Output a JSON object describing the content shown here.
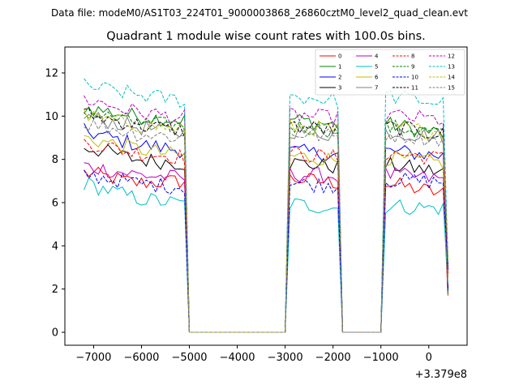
{
  "chart_data": {
    "type": "line",
    "suptitle": "Data file: modeM0/AS1T03_224T01_9000003868_26860cztM0_level2_quad_clean.evt",
    "title": "Quadrant 1 module wise count rates with 100.0s bins.",
    "xlabel": "",
    "ylabel": "",
    "x_offset_label": "+3.379e8",
    "xlim": [
      -7600,
      800
    ],
    "ylim": [
      -0.6,
      13.2
    ],
    "xticks": [
      -7000,
      -6000,
      -5000,
      -4000,
      -3000,
      -2000,
      -1000,
      0
    ],
    "xtick_labels": [
      "−7000",
      "−6000",
      "−5000",
      "−4000",
      "−3000",
      "−2000",
      "−1000",
      "0"
    ],
    "yticks": [
      0,
      2,
      4,
      6,
      8,
      10,
      12
    ],
    "ytick_labels": [
      "0",
      "2",
      "4",
      "6",
      "8",
      "10",
      "12"
    ],
    "grid": false,
    "legend_position": "top-right",
    "segments": [
      {
        "start": -7200,
        "end": -5100
      },
      {
        "start": -2900,
        "end": -1900
      },
      {
        "start": -900,
        "end": 400
      }
    ],
    "gap_x": [
      -5000,
      -3000,
      -1800,
      -1000
    ],
    "series": [
      {
        "name": "0",
        "color": "#ff0000",
        "dashed": false,
        "levels": [
          7.4,
          6.9,
          7.0,
          7.1,
          6.7,
          6.5,
          6.2,
          5.8
        ]
      },
      {
        "name": "1",
        "color": "#008000",
        "dashed": false,
        "levels": [
          10.4,
          10.0,
          9.8,
          9.6,
          9.3,
          9.0,
          8.7,
          8.3
        ]
      },
      {
        "name": "2",
        "color": "#0000ff",
        "dashed": false,
        "levels": [
          9.3,
          8.7,
          8.4,
          8.2,
          7.9,
          7.7,
          7.6,
          7.4
        ]
      },
      {
        "name": "3",
        "color": "#000000",
        "dashed": false,
        "levels": [
          8.6,
          8.0,
          7.8,
          7.7,
          7.4,
          7.2,
          7.0,
          6.7
        ]
      },
      {
        "name": "4",
        "color": "#bf00bf",
        "dashed": false,
        "levels": [
          7.7,
          7.3,
          7.1,
          7.0,
          6.9,
          6.8,
          6.6,
          6.4
        ]
      },
      {
        "name": "5",
        "color": "#00bfbf",
        "dashed": false,
        "levels": [
          6.9,
          6.2,
          5.9,
          5.8,
          5.6,
          5.4,
          5.3,
          5.2
        ]
      },
      {
        "name": "6",
        "color": "#bfbf00",
        "dashed": false,
        "levels": [
          9.0,
          8.5,
          8.1,
          7.9,
          7.7,
          7.5,
          7.3,
          7.1
        ]
      },
      {
        "name": "7",
        "color": "#808080",
        "dashed": false,
        "levels": [
          10.0,
          9.5,
          9.2,
          9.0,
          8.8,
          8.6,
          8.4,
          8.2
        ]
      },
      {
        "name": "8",
        "color": "#ff0000",
        "dashed": true,
        "levels": [
          8.8,
          8.3,
          8.1,
          8.0,
          7.8,
          7.6,
          7.5,
          7.3
        ]
      },
      {
        "name": "9",
        "color": "#008000",
        "dashed": true,
        "levels": [
          10.2,
          9.7,
          9.5,
          9.3,
          9.0,
          8.8,
          8.6,
          8.4
        ]
      },
      {
        "name": "10",
        "color": "#0000ff",
        "dashed": true,
        "levels": [
          7.3,
          6.9,
          6.7,
          6.6,
          6.5,
          6.4,
          6.4,
          6.3
        ]
      },
      {
        "name": "11",
        "color": "#000000",
        "dashed": true,
        "levels": [
          10.1,
          9.6,
          9.3,
          9.2,
          9.0,
          8.8,
          8.6,
          8.3
        ]
      },
      {
        "name": "12",
        "color": "#bf00bf",
        "dashed": true,
        "levels": [
          10.8,
          10.2,
          9.9,
          9.7,
          9.5,
          9.3,
          9.1,
          8.9
        ]
      },
      {
        "name": "13",
        "color": "#00bfbf",
        "dashed": true,
        "levels": [
          11.4,
          11.0,
          10.7,
          10.5,
          10.3,
          10.1,
          9.9,
          9.6
        ]
      },
      {
        "name": "14",
        "color": "#bfbf00",
        "dashed": true,
        "levels": [
          10.0,
          9.6,
          9.4,
          9.2,
          9.0,
          8.8,
          8.6,
          8.4
        ]
      },
      {
        "name": "15",
        "color": "#808080",
        "dashed": true,
        "levels": [
          9.7,
          9.2,
          9.0,
          8.9,
          8.7,
          8.5,
          8.3,
          8.1
        ]
      }
    ]
  }
}
